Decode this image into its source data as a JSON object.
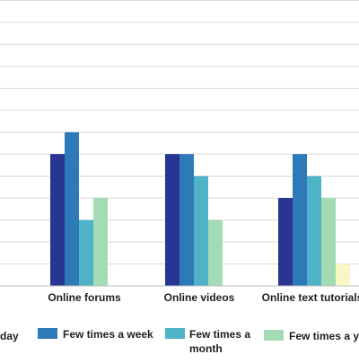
{
  "chart_data": {
    "type": "bar",
    "categories": [
      "Online forums",
      "Online videos",
      "Online text tutorials"
    ],
    "series": [
      {
        "name": "...day",
        "color": "#283593",
        "values": [
          6,
          6,
          4
        ]
      },
      {
        "name": "Few times a week",
        "color": "#2e7ab8",
        "values": [
          7,
          6,
          6
        ]
      },
      {
        "name": "Few times a month",
        "color": "#4fb3c8",
        "values": [
          3,
          5,
          5
        ]
      },
      {
        "name": "Few times a y...",
        "color": "#a3dbb4",
        "values": [
          4,
          3,
          4
        ]
      },
      {
        "name": "",
        "color": "#fbf6c6",
        "values": [
          0,
          0,
          1
        ]
      }
    ],
    "ylim": [
      0,
      13
    ],
    "grid": true,
    "legend_position": "bottom"
  },
  "legend": {
    "day_label": "day",
    "week_label": "Few times a week",
    "month_label_line1": "Few times a",
    "month_label_line2": "month",
    "year_label": "Few times a y"
  },
  "colors": {
    "grid": "#d9d9d9",
    "axis": "#bdbdbd"
  }
}
